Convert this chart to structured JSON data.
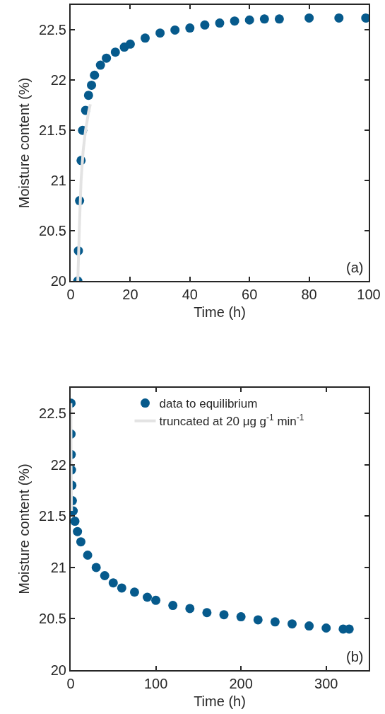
{
  "chart_data": [
    {
      "type": "scatter",
      "xlabel": "Time (h)",
      "ylabel": "Moisture content (%)",
      "annotations": [
        "(a)"
      ],
      "xlim": [
        0,
        100
      ],
      "xticks": [
        0,
        20,
        40,
        60,
        80,
        100
      ],
      "ylim": [
        20,
        22.75
      ],
      "yticks": [
        20,
        20.5,
        21,
        21.5,
        22,
        22.5
      ],
      "grid": false,
      "legend": false,
      "series": [
        {
          "marker": "circle",
          "color": "#065a8c",
          "x": [
            2.4,
            2.6,
            3,
            3.5,
            4,
            5,
            6,
            7,
            8,
            10,
            12,
            15,
            18,
            20,
            25,
            30,
            35,
            40,
            45,
            50,
            55,
            60,
            65,
            70,
            80,
            90,
            99
          ],
          "values": [
            20,
            20.3,
            20.8,
            21.2,
            21.5,
            21.7,
            21.85,
            21.95,
            22.05,
            22.15,
            22.22,
            22.28,
            22.33,
            22.36,
            22.42,
            22.47,
            22.5,
            22.52,
            22.55,
            22.57,
            22.59,
            22.6,
            22.61,
            22.61,
            22.62,
            22.62,
            22.62
          ]
        },
        {
          "type": "line",
          "color": "#e3e3e3",
          "line_style": "solid",
          "x": [
            2.4,
            3,
            3.5,
            4.2,
            5,
            6,
            6.6
          ],
          "values": [
            20,
            20.6,
            21,
            21.3,
            21.5,
            21.68,
            21.76
          ]
        }
      ]
    },
    {
      "type": "scatter",
      "xlabel": "Time (h)",
      "ylabel": "Moisture content (%)",
      "annotations": [
        "(b)"
      ],
      "xlim": [
        0,
        350
      ],
      "xticks": [
        0,
        100,
        200,
        300
      ],
      "ylim": [
        20,
        22.75
      ],
      "yticks": [
        20,
        20.5,
        21,
        21.5,
        22,
        22.5
      ],
      "grid": false,
      "legend": "top",
      "series": [
        {
          "marker": "circle",
          "name": "data to equilibrium",
          "color": "#065a8c",
          "x": [
            0.5,
            0.5,
            0.7,
            1,
            1.5,
            2,
            3,
            5,
            8,
            12,
            20,
            30,
            40,
            50,
            60,
            75,
            90,
            100,
            120,
            140,
            160,
            180,
            200,
            220,
            240,
            260,
            280,
            300,
            320,
            327
          ],
          "values": [
            22.6,
            22.3,
            22.1,
            21.95,
            21.8,
            21.65,
            21.55,
            21.45,
            21.35,
            21.25,
            21.12,
            21,
            20.92,
            20.85,
            20.8,
            20.76,
            20.71,
            20.68,
            20.63,
            20.6,
            20.56,
            20.54,
            20.52,
            20.49,
            20.47,
            20.45,
            20.43,
            20.41,
            20.4,
            20.4
          ]
        },
        {
          "type": "line",
          "name": "truncated at 20 μg g$^{-1}$ min$^{-1}$",
          "color": "#e3e3e3",
          "line_style": "solid",
          "x": [
            0.3,
            0.5,
            1
          ],
          "values": [
            22.6,
            22,
            21.55
          ]
        }
      ]
    }
  ]
}
